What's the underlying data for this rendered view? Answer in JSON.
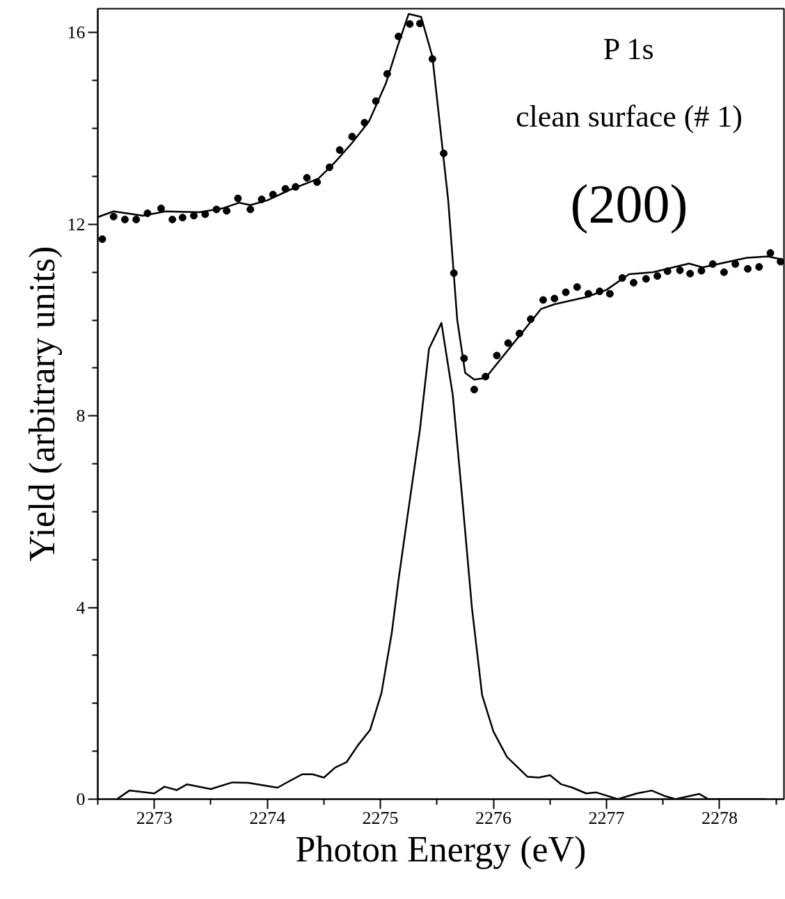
{
  "chart_data": {
    "type": "line",
    "xlabel": "Photon Energy (eV)",
    "ylabel": "Yield (arbitrary units)",
    "annotations": [
      "P 1s",
      "clean surface (# 1)",
      "(200)"
    ],
    "xlim": [
      2272.5,
      2278.57
    ],
    "ylim": [
      0,
      16.5
    ],
    "xticks": [
      {
        "value": 2272.5,
        "label": null
      },
      2273,
      {
        "value": 2273.5,
        "label": null
      },
      2274,
      {
        "value": 2274.5,
        "label": null
      },
      2275,
      {
        "value": 2275.5,
        "label": null
      },
      2276,
      {
        "value": 2276.5,
        "label": null
      },
      2277,
      {
        "value": 2277.5,
        "label": null
      },
      2278,
      {
        "value": 2278.5,
        "label": null
      }
    ],
    "yticks": [
      0,
      {
        "value": 1,
        "label": null
      },
      {
        "value": 2,
        "label": null
      },
      {
        "value": 3,
        "label": null
      },
      4,
      {
        "value": 5,
        "label": null
      },
      {
        "value": 6,
        "label": null
      },
      {
        "value": 7,
        "label": null
      },
      8,
      {
        "value": 9,
        "label": null
      },
      {
        "value": 10,
        "label": null
      },
      {
        "value": 11,
        "label": null
      },
      12,
      {
        "value": 13,
        "label": null
      },
      {
        "value": 14,
        "label": null
      },
      {
        "value": 15,
        "label": null
      },
      16
    ],
    "grid": false,
    "line_style": "solid",
    "series": [
      {
        "type": "scatter",
        "marker": "circle",
        "color": "#000000",
        "x": [
          2272.54,
          2272.64,
          2272.74,
          2272.84,
          2272.94,
          2273.06,
          2273.16,
          2273.25,
          2273.35,
          2273.45,
          2273.55,
          2273.64,
          2273.74,
          2273.85,
          2273.95,
          2274.05,
          2274.16,
          2274.25,
          2274.35,
          2274.44,
          2274.55,
          2274.64,
          2274.75,
          2274.86,
          2274.96,
          2275.06,
          2275.16,
          2275.26,
          2275.35,
          2275.46,
          2275.56,
          2275.65,
          2275.74,
          2275.83,
          2275.93,
          2276.03,
          2276.13,
          2276.23,
          2276.33,
          2276.44,
          2276.54,
          2276.64,
          2276.74,
          2276.84,
          2276.94,
          2277.03,
          2277.14,
          2277.24,
          2277.35,
          2277.45,
          2277.54,
          2277.65,
          2277.74,
          2277.84,
          2277.94,
          2278.04,
          2278.14,
          2278.25,
          2278.35,
          2278.45,
          2278.54
        ],
        "values": [
          11.69,
          12.16,
          12.1,
          12.1,
          12.23,
          12.33,
          12.1,
          12.14,
          12.18,
          12.21,
          12.31,
          12.28,
          12.54,
          12.31,
          12.52,
          12.62,
          12.74,
          12.78,
          12.97,
          12.88,
          13.19,
          13.55,
          13.83,
          14.12,
          14.57,
          15.14,
          15.92,
          16.18,
          16.19,
          15.45,
          13.48,
          10.98,
          9.2,
          8.55,
          8.82,
          9.26,
          9.52,
          9.72,
          10.02,
          10.42,
          10.45,
          10.58,
          10.69,
          10.55,
          10.6,
          10.55,
          10.88,
          10.78,
          10.86,
          10.92,
          11.02,
          11.04,
          10.97,
          11.03,
          11.17,
          11.0,
          11.17,
          11.07,
          11.11,
          11.4,
          11.22
        ]
      },
      {
        "color": "#000000",
        "x": [
          2272.5,
          2272.64,
          2272.9,
          2273.1,
          2273.4,
          2273.6,
          2273.75,
          2273.85,
          2274.0,
          2274.2,
          2274.45,
          2274.6,
          2274.75,
          2274.9,
          2275.05,
          2275.15,
          2275.25,
          2275.36,
          2275.46,
          2275.6,
          2275.68,
          2275.75,
          2275.83,
          2275.93,
          2276.42,
          2276.54,
          2276.82,
          2277.0,
          2277.2,
          2277.41,
          2277.73,
          2277.85,
          2278.24,
          2278.43,
          2278.54
        ],
        "values": [
          12.15,
          12.27,
          12.18,
          12.27,
          12.25,
          12.33,
          12.45,
          12.4,
          12.5,
          12.72,
          12.95,
          13.3,
          13.7,
          14.15,
          14.95,
          15.7,
          16.39,
          16.33,
          15.5,
          12.5,
          10.0,
          8.9,
          8.76,
          8.79,
          10.23,
          10.33,
          10.48,
          10.63,
          10.96,
          11.0,
          11.18,
          11.1,
          11.3,
          11.33,
          11.27
        ]
      },
      {
        "color": "#000000",
        "x": [
          2272.67,
          2272.78,
          2273.0,
          2273.09,
          2273.2,
          2273.29,
          2273.5,
          2273.69,
          2273.83,
          2274.09,
          2274.19,
          2274.31,
          2274.4,
          2274.5,
          2274.6,
          2274.7,
          2274.8,
          2274.91,
          2275.01,
          2275.1,
          2275.16,
          2275.24,
          2275.35,
          2275.43,
          2275.54,
          2275.64,
          2275.72,
          2275.81,
          2275.9,
          2276.0,
          2276.12,
          2276.3,
          2276.4,
          2276.5,
          2276.6,
          2276.7,
          2276.82,
          2276.91,
          2277.1,
          2277.27,
          2277.4,
          2277.51,
          2277.61,
          2277.82,
          2277.9,
          2278.0,
          2278.32,
          2278.41
        ],
        "values": [
          0,
          0.18,
          0.12,
          0.26,
          0.19,
          0.31,
          0.21,
          0.35,
          0.34,
          0.24,
          0.37,
          0.52,
          0.52,
          0.45,
          0.66,
          0.77,
          1.12,
          1.45,
          2.22,
          3.46,
          4.57,
          5.91,
          7.72,
          9.4,
          9.94,
          8.44,
          6.39,
          3.99,
          2.17,
          1.41,
          0.88,
          0.47,
          0.45,
          0.5,
          0.31,
          0.24,
          0.12,
          0.14,
          0,
          0.12,
          0.18,
          0.07,
          0,
          0.11,
          0,
          0,
          0,
          0
        ]
      }
    ]
  }
}
